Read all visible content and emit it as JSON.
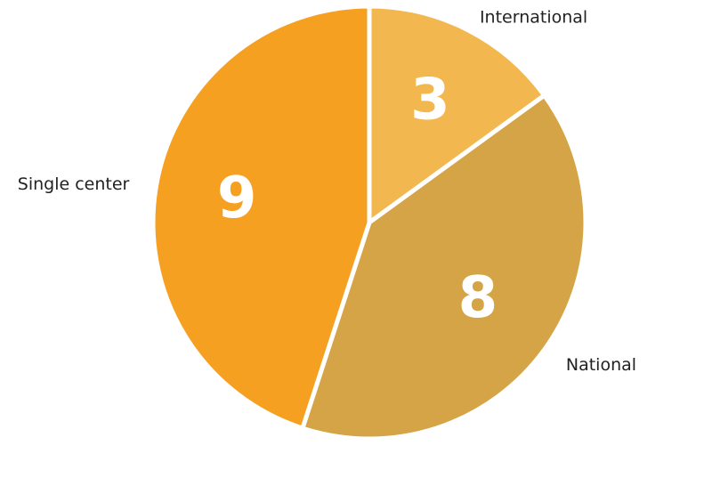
{
  "chart_data": {
    "type": "pie",
    "categories": [
      "International",
      "National",
      "Single center"
    ],
    "values": [
      3,
      8,
      9
    ],
    "colors": [
      "#f2b84f",
      "#d4a446",
      "#f6a021"
    ]
  }
}
